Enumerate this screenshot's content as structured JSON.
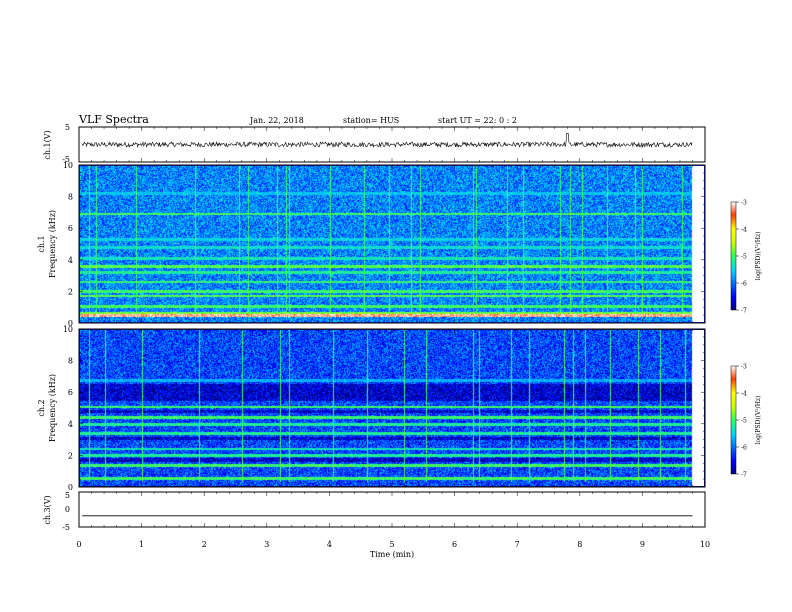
{
  "header": {
    "title": "VLF Spectra",
    "date": "Jan. 22, 2018",
    "station": "station= HUS",
    "start": "start UT =  22: 0  : 2"
  },
  "chart_data": [
    {
      "type": "line",
      "name": "ch.1 waveform",
      "ylabel": "ch.1(V)",
      "ylim": [
        -5,
        5
      ],
      "yticks": [
        5,
        -5
      ],
      "xlim": [
        0,
        10
      ],
      "baseline_value": 0,
      "noise_amplitude": 0.7
    },
    {
      "type": "heatmap",
      "name": "ch.1 spectrogram",
      "ylabel_line1": "ch.1",
      "ylabel_line2": "Frequency (kHz)",
      "ylim": [
        0,
        10
      ],
      "yticks": [
        0,
        2,
        4,
        6,
        8,
        10
      ],
      "xlim": [
        0,
        10
      ],
      "colorbar": {
        "label": "log(PSD)(V²/Hz)",
        "range": [
          -7,
          -3
        ],
        "ticks": [
          -3,
          -4,
          -5,
          -6,
          -7
        ]
      },
      "bands_khz": [
        {
          "f": 0.45,
          "level": -3.2
        },
        {
          "f": 0.6,
          "level": -4.8
        },
        {
          "f": 1.0,
          "level": -5.0
        },
        {
          "f": 1.7,
          "level": -4.9
        },
        {
          "f": 2.0,
          "level": -5.0
        },
        {
          "f": 2.6,
          "level": -5.1
        },
        {
          "f": 3.2,
          "level": -5.2
        },
        {
          "f": 3.6,
          "level": -4.9
        },
        {
          "f": 4.1,
          "level": -5.3
        },
        {
          "f": 4.8,
          "level": -5.4
        },
        {
          "f": 5.3,
          "level": -5.5
        },
        {
          "f": 6.95,
          "level": -5.0
        },
        {
          "f": 8.25,
          "level": -5.6
        }
      ],
      "spherics_min": [
        0.15,
        0.25,
        0.9,
        1.85,
        2.55,
        2.7,
        3.15,
        3.3,
        3.35,
        4.0,
        4.55,
        4.95,
        5.3,
        5.45,
        6.3,
        6.35,
        6.85,
        7.1,
        7.7,
        7.85,
        8.05,
        8.45,
        8.9,
        9.0,
        9.65
      ]
    },
    {
      "type": "heatmap",
      "name": "ch.2 spectrogram",
      "ylabel_line1": "ch.2",
      "ylabel_line2": "Frequency (kHz)",
      "ylim": [
        0,
        10
      ],
      "yticks": [
        0,
        2,
        4,
        6,
        8,
        10
      ],
      "xlim": [
        0,
        10
      ],
      "colorbar": {
        "label": "log(PSD)(V²/Hz)",
        "range": [
          -7,
          -3
        ],
        "ticks": [
          -3,
          -4,
          -5,
          -6,
          -7
        ]
      },
      "bands_khz": [
        {
          "f": 0.5,
          "level": -5.0
        },
        {
          "f": 1.35,
          "level": -5.0
        },
        {
          "f": 2.0,
          "level": -5.2
        },
        {
          "f": 2.4,
          "level": -5.3
        },
        {
          "f": 3.4,
          "level": -5.2
        },
        {
          "f": 3.95,
          "level": -5.2
        },
        {
          "f": 4.4,
          "level": -5.0
        },
        {
          "f": 5.1,
          "level": -5.0
        },
        {
          "f": 6.8,
          "level": -5.7
        }
      ],
      "dark_bands_khz": [
        {
          "from": 5.5,
          "to": 6.6
        },
        {
          "from": 4.7,
          "to": 4.9
        },
        {
          "from": 3.0,
          "to": 3.2
        },
        {
          "from": 1.6,
          "to": 1.8
        }
      ],
      "spherics_min": [
        0.15,
        0.4,
        1.0,
        1.9,
        2.6,
        3.2,
        3.35,
        4.05,
        4.6,
        5.2,
        5.55,
        6.3,
        6.4,
        6.9,
        7.2,
        7.75,
        7.9,
        8.1,
        8.5,
        8.95,
        9.3,
        9.7
      ]
    },
    {
      "type": "line",
      "name": "ch.3 waveform",
      "ylabel": "ch.3(V)",
      "ylim": [
        -5,
        5
      ],
      "yticks": [
        5,
        0,
        -5
      ],
      "xlim": [
        0,
        10
      ],
      "xlabel": "Time (min)",
      "xticks": [
        0,
        1,
        2,
        3,
        4,
        5,
        6,
        7,
        8,
        9,
        10
      ],
      "baseline_value": -1.8
    }
  ]
}
